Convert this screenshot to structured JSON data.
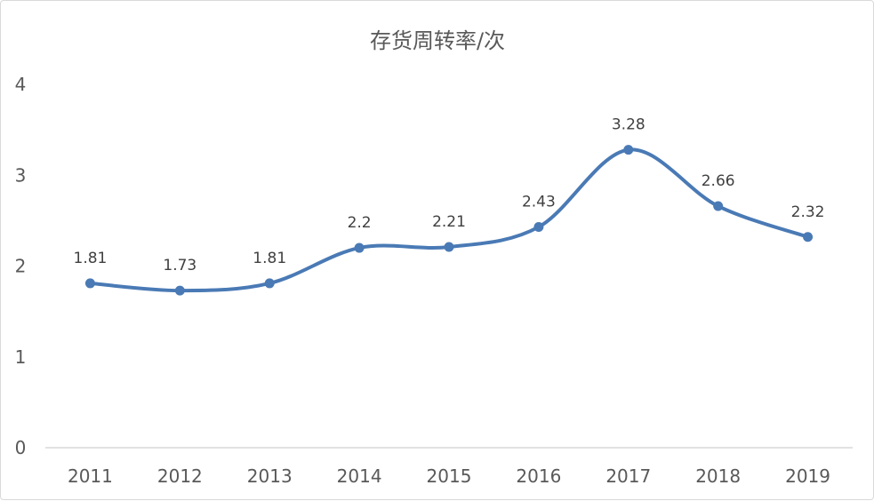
{
  "chart_data": {
    "type": "line",
    "title": "存货周转率/次",
    "categories": [
      "2011",
      "2012",
      "2013",
      "2014",
      "2015",
      "2016",
      "2017",
      "2018",
      "2019"
    ],
    "series": [
      {
        "values": [
          1.81,
          1.73,
          1.81,
          2.2,
          2.21,
          2.43,
          3.28,
          2.66,
          2.32
        ],
        "data_labels": [
          "1.81",
          "1.73",
          "1.81",
          "2.2",
          "2.21",
          "2.43",
          "3.28",
          "2.66",
          "2.32"
        ],
        "color": "#4a7ab5",
        "smooth": true
      }
    ],
    "ylim": [
      0,
      4
    ],
    "yticks": [
      0,
      1,
      2,
      3,
      4
    ],
    "ytick_labels": [
      "0",
      "1",
      "2",
      "3",
      "4"
    ],
    "grid": false,
    "legend": "none",
    "axis_color": "#d9d9d9"
  }
}
